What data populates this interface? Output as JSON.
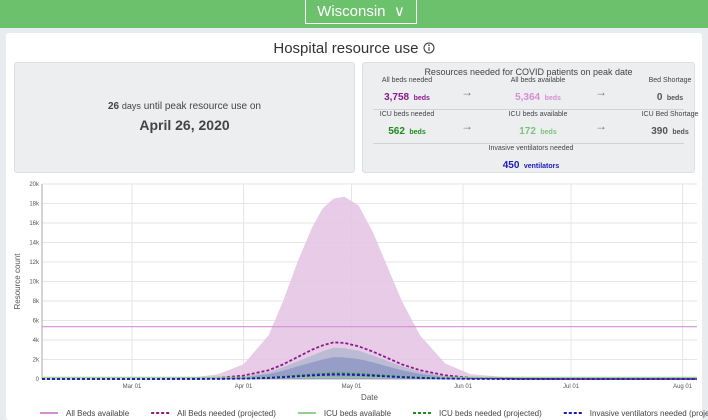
{
  "header": {
    "state": "Wisconsin"
  },
  "title": "Hospital resource use",
  "peak": {
    "days": "26",
    "unit": "days",
    "text": "until peak resource use on",
    "date": "April 26, 2020"
  },
  "resources": {
    "title": "Resources needed for COVID patients on peak date",
    "items": [
      {
        "label": "All beds needed",
        "value": "3,758",
        "unit": "beds",
        "color": "#8b1a8b"
      },
      {
        "label": "All beds available",
        "value": "5,364",
        "unit": "beds",
        "color": "#d58fd5"
      },
      {
        "label": "Bed Shortage",
        "value": "0",
        "unit": "beds",
        "color": "#555555"
      },
      {
        "label": "ICU beds needed",
        "value": "562",
        "unit": "beds",
        "color": "#1f8a1f"
      },
      {
        "label": "ICU beds available",
        "value": "172",
        "unit": "beds",
        "color": "#7cc47c"
      },
      {
        "label": "ICU Bed Shortage",
        "value": "390",
        "unit": "beds",
        "color": "#555555"
      },
      {
        "label": "Invasive ventilators needed",
        "value": "450",
        "unit": "ventilators",
        "color": "#1a1ab8"
      }
    ]
  },
  "chart_data": {
    "type": "line",
    "x_label": "Date",
    "y_label": "Resource count",
    "x": [
      "Feb 05",
      "Feb 19",
      "Mar 04",
      "Mar 18",
      "Mar 25",
      "Apr 01",
      "Apr 08",
      "Apr 12",
      "Apr 16",
      "Apr 20",
      "Apr 23",
      "Apr 26",
      "Apr 29",
      "May 03",
      "May 07",
      "May 11",
      "May 15",
      "May 20",
      "May 27",
      "Jun 03",
      "Jun 17",
      "Jul 01",
      "Jul 15",
      "Aug 05"
    ],
    "xlim": [
      "Feb 05",
      "Aug 05"
    ],
    "xticks": [
      "Mar 01",
      "Apr 01",
      "May 01",
      "Jun 01",
      "Jul 01",
      "Aug 01"
    ],
    "ylim": [
      0,
      20000
    ],
    "yticks": [
      0,
      {
        "value": 2000,
        "label": "2k"
      },
      {
        "value": 4000,
        "label": "4k"
      },
      {
        "value": 6000,
        "label": "6k"
      },
      {
        "value": 8000,
        "label": "8k"
      },
      {
        "value": 10000,
        "label": "10k"
      },
      {
        "value": 12000,
        "label": "12k"
      },
      {
        "value": 14000,
        "label": "14k"
      },
      {
        "value": 16000,
        "label": "16k"
      },
      {
        "value": 18000,
        "label": "18k"
      },
      {
        "value": 20000,
        "label": "20k"
      }
    ],
    "grid": true,
    "series": [
      {
        "name": "All Beds available",
        "color": "#d58fd5",
        "dashed": false,
        "values": [
          5364,
          5364,
          5364,
          5364,
          5364,
          5364,
          5364,
          5364,
          5364,
          5364,
          5364,
          5364,
          5364,
          5364,
          5364,
          5364,
          5364,
          5364,
          5364,
          5364,
          5364,
          5364,
          5364,
          5364
        ]
      },
      {
        "name": "All Beds needed (projected)",
        "color": "#8b1a8b",
        "dashed": true,
        "band_color": "#e3c2e3",
        "values": [
          0,
          0,
          5,
          40,
          120,
          350,
          900,
          1500,
          2250,
          3000,
          3450,
          3758,
          3700,
          3350,
          2800,
          2150,
          1500,
          900,
          380,
          130,
          15,
          0,
          0,
          0
        ],
        "upper": [
          0,
          0,
          10,
          150,
          500,
          1500,
          4500,
          8000,
          12000,
          15500,
          17500,
          18500,
          18700,
          17800,
          15000,
          11500,
          8000,
          4500,
          1600,
          500,
          60,
          0,
          0,
          0
        ]
      },
      {
        "name": "ICU beds available",
        "color": "#8fcf8f",
        "dashed": false,
        "values": [
          172,
          172,
          172,
          172,
          172,
          172,
          172,
          172,
          172,
          172,
          172,
          172,
          172,
          172,
          172,
          172,
          172,
          172,
          172,
          172,
          172,
          172,
          172,
          172
        ]
      },
      {
        "name": "ICU beds needed (projected)",
        "color": "#1f8a1f",
        "dashed": true,
        "band_color": "#b3b8cf",
        "values": [
          0,
          0,
          1,
          6,
          18,
          52,
          135,
          225,
          338,
          450,
          518,
          562,
          555,
          503,
          420,
          323,
          225,
          135,
          57,
          20,
          2,
          0,
          0,
          0
        ],
        "upper": [
          0,
          0,
          2,
          25,
          80,
          250,
          700,
          1200,
          1800,
          2400,
          2850,
          3200,
          3150,
          2900,
          2400,
          1850,
          1300,
          750,
          300,
          100,
          10,
          0,
          0,
          0
        ]
      },
      {
        "name": "Invasive ventilators needed (projected)",
        "color": "#1a1ab8",
        "dashed": true,
        "band_color": "#8f99c4",
        "values": [
          0,
          0,
          1,
          5,
          14,
          42,
          108,
          180,
          270,
          360,
          414,
          450,
          444,
          402,
          336,
          258,
          180,
          108,
          46,
          16,
          2,
          0,
          0,
          0
        ],
        "upper": [
          0,
          0,
          1,
          18,
          60,
          180,
          500,
          850,
          1300,
          1700,
          2000,
          2250,
          2200,
          2050,
          1700,
          1300,
          900,
          520,
          210,
          70,
          7,
          0,
          0,
          0
        ]
      }
    ]
  }
}
